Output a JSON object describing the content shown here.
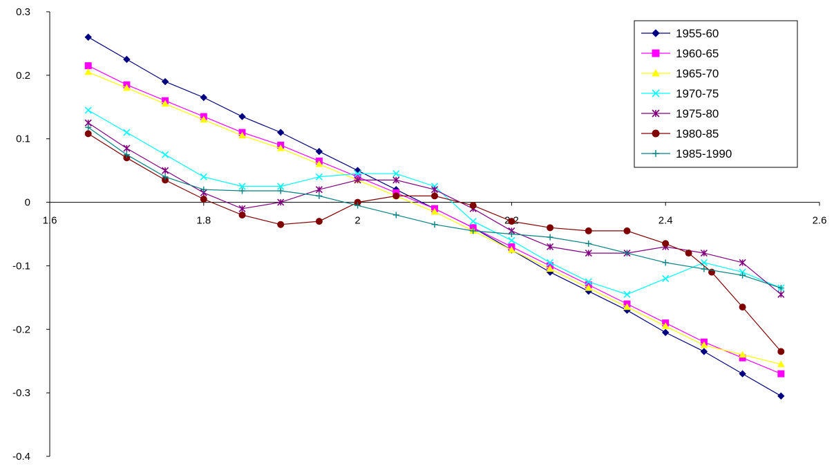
{
  "chart_data": {
    "type": "line",
    "title": "",
    "xlabel": "",
    "ylabel": "",
    "xlim": [
      1.6,
      2.6
    ],
    "ylim": [
      -0.4,
      0.3
    ],
    "x_ticks": [
      1.6,
      1.8,
      2,
      2.2,
      2.4,
      2.6
    ],
    "x_tick_labels": [
      "1.6",
      "1.8",
      "2",
      "2.2",
      "2.4",
      "2.6"
    ],
    "y_ticks": [
      0.3,
      0.2,
      0.1,
      0,
      -0.1,
      -0.2,
      -0.3,
      -0.4
    ],
    "y_tick_labels": [
      "0.3",
      "0.2",
      "0.1",
      "0",
      "-0.1",
      "-0.2",
      "-0.3",
      "-0.4"
    ],
    "grid": false,
    "legend_position": "top-right",
    "series": [
      {
        "name": "1955-60",
        "color": "#000080",
        "marker": "diamond",
        "x": [
          1.65,
          1.7,
          1.75,
          1.8,
          1.85,
          1.9,
          1.95,
          2.0,
          2.05,
          2.1,
          2.15,
          2.2,
          2.25,
          2.3,
          2.35,
          2.4,
          2.45,
          2.5,
          2.55
        ],
        "y": [
          0.26,
          0.225,
          0.19,
          0.165,
          0.135,
          0.11,
          0.08,
          0.05,
          0.02,
          -0.01,
          -0.04,
          -0.075,
          -0.11,
          -0.14,
          -0.17,
          -0.205,
          -0.235,
          -0.27,
          -0.305
        ]
      },
      {
        "name": "1960-65",
        "color": "#FF00FF",
        "marker": "square",
        "x": [
          1.65,
          1.7,
          1.75,
          1.8,
          1.85,
          1.9,
          1.95,
          2.0,
          2.05,
          2.1,
          2.15,
          2.2,
          2.25,
          2.3,
          2.35,
          2.4,
          2.45,
          2.5,
          2.55
        ],
        "y": [
          0.215,
          0.185,
          0.16,
          0.135,
          0.11,
          0.09,
          0.065,
          0.04,
          0.015,
          -0.01,
          -0.04,
          -0.07,
          -0.1,
          -0.13,
          -0.16,
          -0.19,
          -0.22,
          -0.245,
          -0.27
        ]
      },
      {
        "name": "1965-70",
        "color": "#FFFF00",
        "marker": "triangle",
        "x": [
          1.65,
          1.7,
          1.75,
          1.8,
          1.85,
          1.9,
          1.95,
          2.0,
          2.05,
          2.1,
          2.15,
          2.2,
          2.25,
          2.3,
          2.35,
          2.4,
          2.45,
          2.5,
          2.55
        ],
        "y": [
          0.205,
          0.18,
          0.155,
          0.13,
          0.105,
          0.085,
          0.06,
          0.035,
          0.01,
          -0.015,
          -0.045,
          -0.075,
          -0.105,
          -0.135,
          -0.165,
          -0.195,
          -0.225,
          -0.24,
          -0.255
        ]
      },
      {
        "name": "1970-75",
        "color": "#00FFFF",
        "marker": "x",
        "x": [
          1.65,
          1.7,
          1.75,
          1.8,
          1.85,
          1.9,
          1.95,
          2.0,
          2.05,
          2.1,
          2.15,
          2.2,
          2.25,
          2.3,
          2.35,
          2.4,
          2.45,
          2.5,
          2.55
        ],
        "y": [
          0.145,
          0.11,
          0.075,
          0.04,
          0.025,
          0.025,
          0.04,
          0.045,
          0.045,
          0.025,
          -0.03,
          -0.06,
          -0.095,
          -0.125,
          -0.145,
          -0.12,
          -0.095,
          -0.11,
          -0.135
        ]
      },
      {
        "name": "1975-80",
        "color": "#800080",
        "marker": "star",
        "x": [
          1.65,
          1.7,
          1.75,
          1.8,
          1.85,
          1.9,
          1.95,
          2.0,
          2.05,
          2.1,
          2.15,
          2.2,
          2.25,
          2.3,
          2.35,
          2.4,
          2.45,
          2.5,
          2.55
        ],
        "y": [
          0.125,
          0.085,
          0.05,
          0.015,
          -0.01,
          0.0,
          0.02,
          0.035,
          0.035,
          0.02,
          -0.01,
          -0.045,
          -0.07,
          -0.08,
          -0.08,
          -0.07,
          -0.08,
          -0.095,
          -0.145
        ]
      },
      {
        "name": "1980-85",
        "color": "#800000",
        "marker": "circle",
        "x": [
          1.65,
          1.7,
          1.75,
          1.8,
          1.85,
          1.9,
          1.95,
          2.0,
          2.05,
          2.1,
          2.15,
          2.2,
          2.25,
          2.3,
          2.35,
          2.4,
          2.43,
          2.46,
          2.5,
          2.55
        ],
        "y": [
          0.108,
          0.07,
          0.035,
          0.005,
          -0.02,
          -0.035,
          -0.03,
          0.0,
          0.01,
          0.01,
          -0.005,
          -0.03,
          -0.04,
          -0.045,
          -0.045,
          -0.065,
          -0.08,
          -0.11,
          -0.165,
          -0.235
        ]
      },
      {
        "name": "1985-1990",
        "color": "#008080",
        "marker": "plus",
        "x": [
          1.65,
          1.7,
          1.75,
          1.8,
          1.85,
          1.9,
          1.95,
          2.0,
          2.05,
          2.1,
          2.15,
          2.2,
          2.25,
          2.3,
          2.35,
          2.4,
          2.45,
          2.5,
          2.55
        ],
        "y": [
          0.118,
          0.075,
          0.04,
          0.02,
          0.018,
          0.018,
          0.01,
          -0.005,
          -0.02,
          -0.035,
          -0.045,
          -0.05,
          -0.055,
          -0.065,
          -0.08,
          -0.095,
          -0.105,
          -0.115,
          -0.135
        ]
      }
    ]
  }
}
